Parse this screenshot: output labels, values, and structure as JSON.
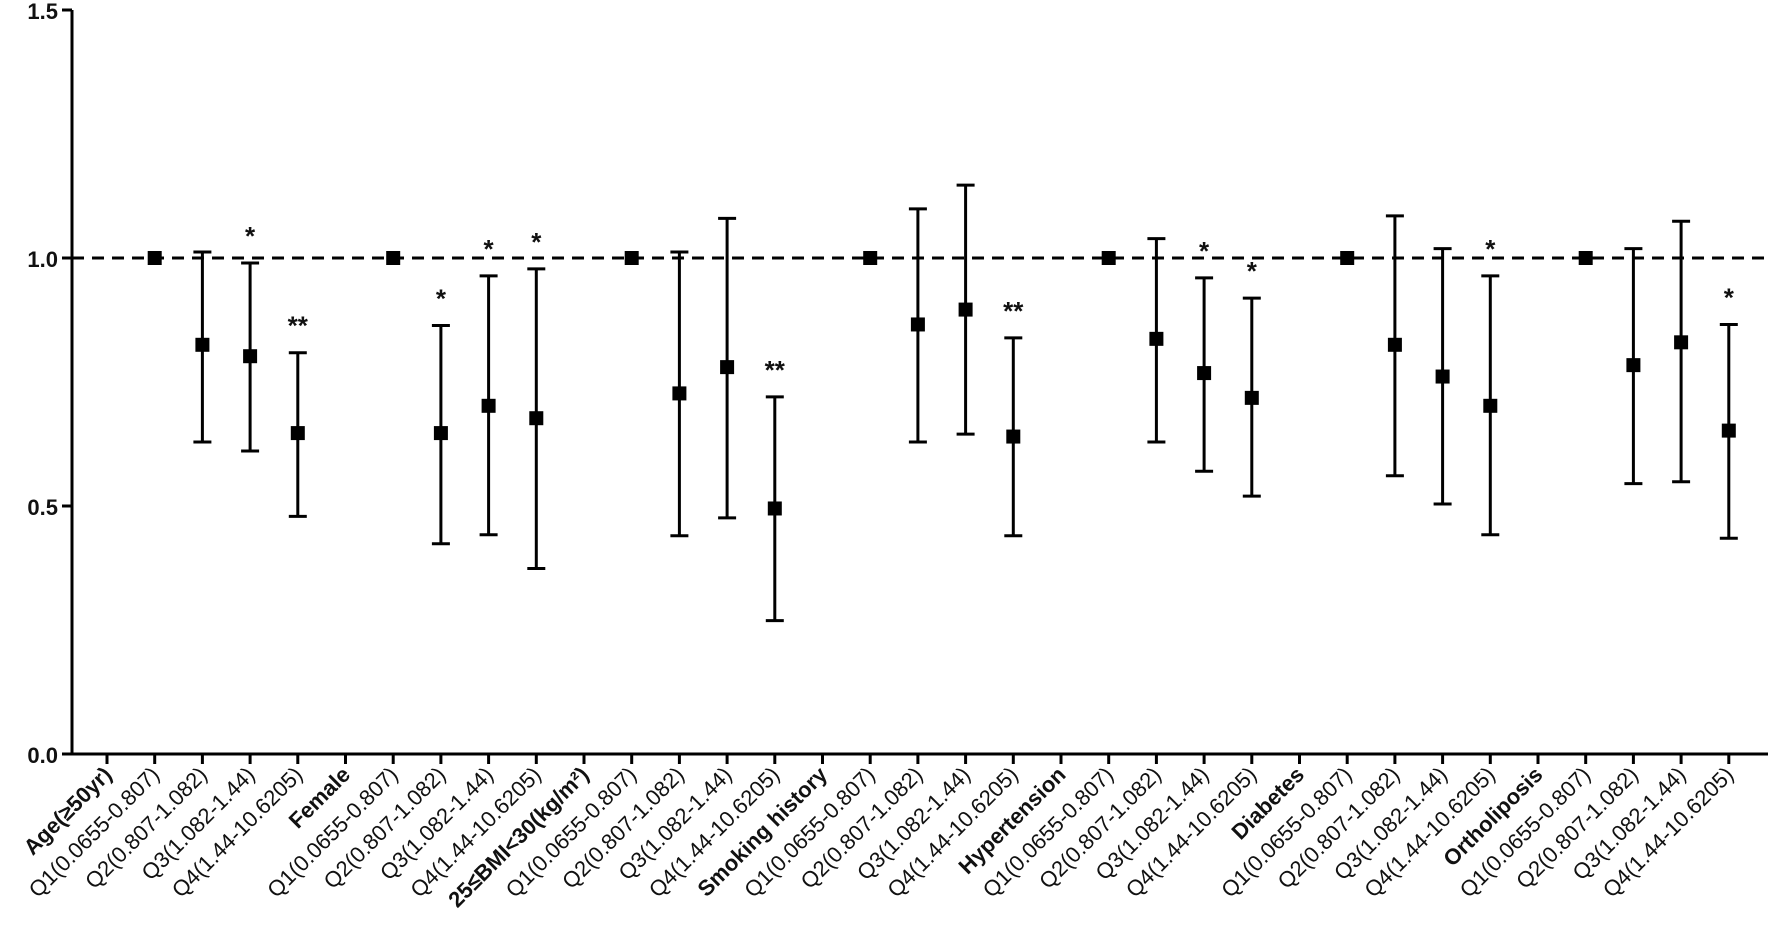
{
  "chart_data": {
    "type": "scatter",
    "title": "",
    "xlabel": "",
    "ylabel": "",
    "ylim": [
      0,
      1.5
    ],
    "yticks": [
      "0.0",
      "0.5",
      "1.0",
      "1.5"
    ],
    "reference_line": 1.0,
    "grid": false,
    "categories": [
      {
        "label": "Age(≥50yr)",
        "group": true
      },
      {
        "label": "Q1(0.0655-0.807)",
        "value": 1.0
      },
      {
        "label": "Q2(0.807-1.082)",
        "value": 0.825,
        "lower": 0.629,
        "upper": 1.012,
        "sig": ""
      },
      {
        "label": "Q3(1.082-1.44)",
        "value": 0.802,
        "lower": 0.611,
        "upper": 0.99,
        "sig": "*"
      },
      {
        "label": "Q4(1.44-10.6205)",
        "value": 0.647,
        "lower": 0.479,
        "upper": 0.809,
        "sig": "**"
      },
      {
        "label": "Female",
        "group": true
      },
      {
        "label": "Q1(0.0655-0.807)",
        "value": 1.0
      },
      {
        "label": "Q2(0.807-1.082)",
        "value": 0.647,
        "lower": 0.424,
        "upper": 0.864,
        "sig": "*"
      },
      {
        "label": "Q3(1.082-1.44)",
        "value": 0.702,
        "lower": 0.442,
        "upper": 0.964,
        "sig": "*"
      },
      {
        "label": "Q4(1.44-10.6205)",
        "value": 0.677,
        "lower": 0.374,
        "upper": 0.978,
        "sig": "*"
      },
      {
        "label": "25≤BMI<30(kg/m²)",
        "group": true
      },
      {
        "label": "Q1(0.0655-0.807)",
        "value": 1.0
      },
      {
        "label": "Q2(0.807-1.082)",
        "value": 0.727,
        "lower": 0.44,
        "upper": 1.012,
        "sig": ""
      },
      {
        "label": "Q3(1.082-1.44)",
        "value": 0.78,
        "lower": 0.476,
        "upper": 1.08,
        "sig": ""
      },
      {
        "label": "Q4(1.44-10.6205)",
        "value": 0.495,
        "lower": 0.269,
        "upper": 0.72,
        "sig": "**"
      },
      {
        "label": "Smoking history",
        "group": true
      },
      {
        "label": "Q1(0.0655-0.807)",
        "value": 1.0
      },
      {
        "label": "Q2(0.807-1.082)",
        "value": 0.866,
        "lower": 0.629,
        "upper": 1.099,
        "sig": ""
      },
      {
        "label": "Q3(1.082-1.44)",
        "value": 0.896,
        "lower": 0.645,
        "upper": 1.147,
        "sig": ""
      },
      {
        "label": "Q4(1.44-10.6205)",
        "value": 0.64,
        "lower": 0.44,
        "upper": 0.839,
        "sig": "**"
      },
      {
        "label": "Hypertension",
        "group": true
      },
      {
        "label": "Q1(0.0655-0.807)",
        "value": 1.0
      },
      {
        "label": "Q2(0.807-1.082)",
        "value": 0.837,
        "lower": 0.629,
        "upper": 1.039,
        "sig": ""
      },
      {
        "label": "Q3(1.082-1.44)",
        "value": 0.768,
        "lower": 0.57,
        "upper": 0.96,
        "sig": "*"
      },
      {
        "label": "Q4(1.44-10.6205)",
        "value": 0.718,
        "lower": 0.52,
        "upper": 0.919,
        "sig": "*"
      },
      {
        "label": "Diabetes",
        "group": true
      },
      {
        "label": "Q1(0.0655-0.807)",
        "value": 1.0
      },
      {
        "label": "Q2(0.807-1.082)",
        "value": 0.825,
        "lower": 0.561,
        "upper": 1.085,
        "sig": ""
      },
      {
        "label": "Q3(1.082-1.44)",
        "value": 0.761,
        "lower": 0.504,
        "upper": 1.019,
        "sig": ""
      },
      {
        "label": "Q4(1.44-10.6205)",
        "value": 0.702,
        "lower": 0.442,
        "upper": 0.964,
        "sig": "*"
      },
      {
        "label": "Ortholiposis",
        "group": true
      },
      {
        "label": "Q1(0.0655-0.807)",
        "value": 1.0
      },
      {
        "label": "Q2(0.807-1.082)",
        "value": 0.784,
        "lower": 0.545,
        "upper": 1.019,
        "sig": ""
      },
      {
        "label": "Q3(1.082-1.44)",
        "value": 0.83,
        "lower": 0.549,
        "upper": 1.074,
        "sig": ""
      },
      {
        "label": "Q4(1.44-10.6205)",
        "value": 0.652,
        "lower": 0.435,
        "upper": 0.866,
        "sig": "*"
      }
    ],
    "colors": {
      "marker": "#000000",
      "axis": "#000000"
    }
  }
}
